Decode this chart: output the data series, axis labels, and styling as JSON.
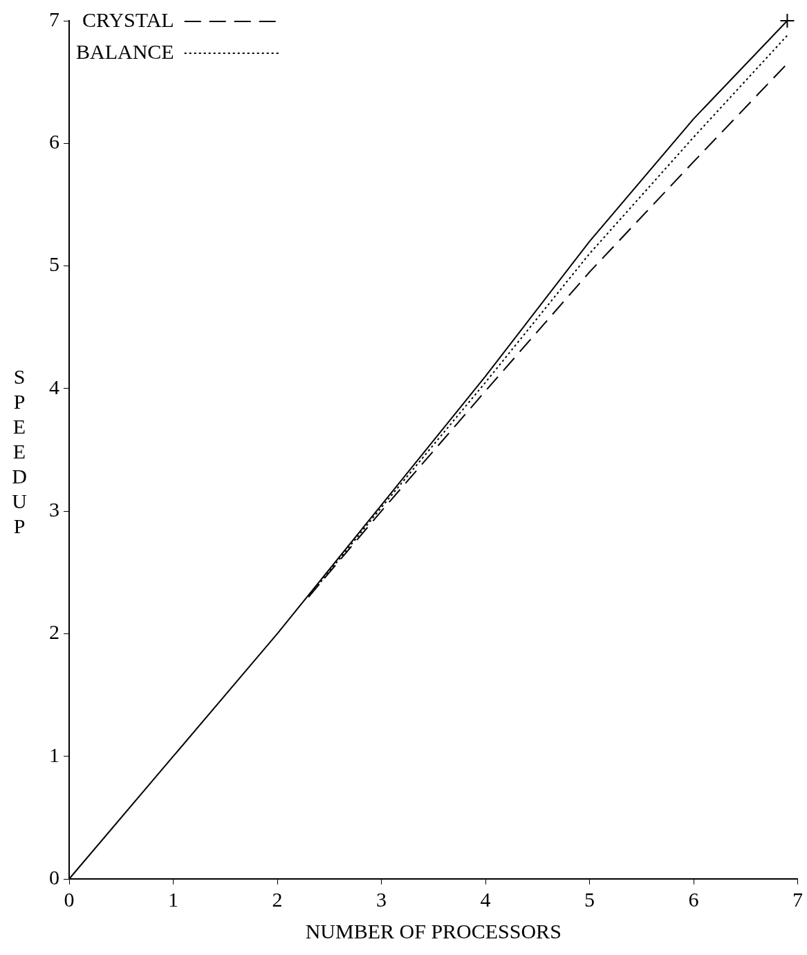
{
  "chart_data": {
    "type": "line",
    "xlabel": "NUMBER OF PROCESSORS",
    "ylabel": "SPEEDUP",
    "xlim": [
      0,
      7
    ],
    "ylim": [
      0,
      7
    ],
    "xticks": [
      0,
      1,
      2,
      3,
      4,
      5,
      6,
      7
    ],
    "yticks": [
      0,
      1,
      2,
      3,
      4,
      5,
      6,
      7
    ],
    "grid": false,
    "legend": "top left",
    "series": [
      {
        "color": "#000000",
        "line_style": "solid",
        "x": [
          0,
          1,
          2,
          3,
          4,
          5,
          6,
          6.9
        ],
        "values": [
          0,
          1,
          2,
          3.05,
          4.1,
          5.2,
          6.2,
          7
        ]
      },
      {
        "name": "CRYSTAL",
        "color": "#000000",
        "line_style": "dashed",
        "x": [
          2.3,
          3,
          4,
          5,
          6,
          6.9
        ],
        "values": [
          2.3,
          3,
          3.98,
          4.95,
          5.85,
          6.65
        ]
      },
      {
        "name": "BALANCE",
        "color": "#000000",
        "line_style": "dotted",
        "x": [
          2.3,
          3,
          4,
          5,
          6,
          6.9
        ],
        "values": [
          2.3,
          3.03,
          4.05,
          5.1,
          6.05,
          6.88
        ]
      },
      {
        "type": "scatter",
        "marker": "cross",
        "color": "#000000",
        "x": [
          6.9
        ],
        "values": [
          7
        ]
      }
    ]
  }
}
